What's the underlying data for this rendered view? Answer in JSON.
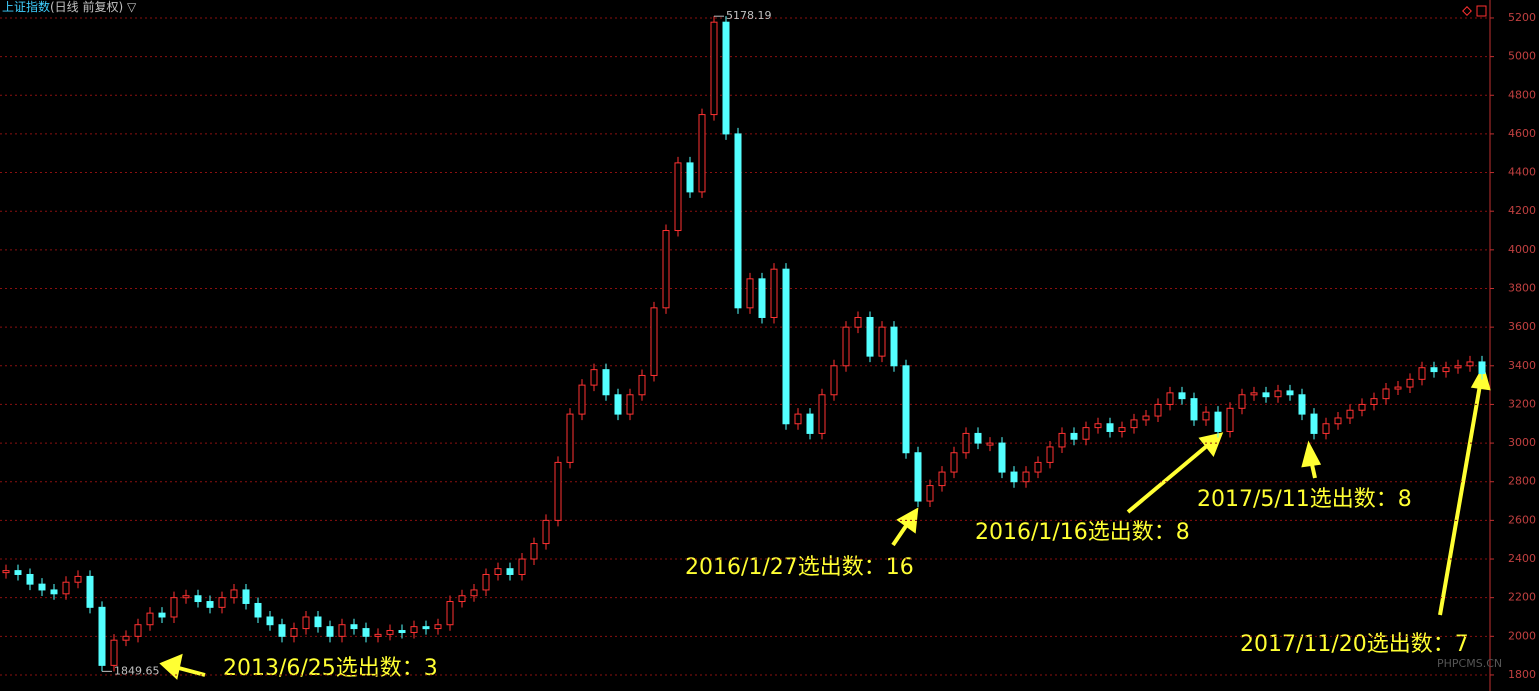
{
  "chart_data": {
    "type": "candle-line",
    "title": "上证指数",
    "subtitle": "(日线 前复权) ▽",
    "values": [
      2340,
      2320,
      2270,
      2240,
      2220,
      2280,
      2310,
      2150,
      1849.65,
      1980,
      2000,
      2060,
      2120,
      2100,
      2200,
      2210,
      2180,
      2150,
      2200,
      2240,
      2170,
      2100,
      2060,
      2000,
      2040,
      2100,
      2050,
      2000,
      2060,
      2040,
      2000,
      2010,
      2030,
      2020,
      2050,
      2040,
      2060,
      2180,
      2210,
      2240,
      2320,
      2350,
      2320,
      2400,
      2480,
      2600,
      2900,
      3150,
      3300,
      3380,
      3250,
      3150,
      3250,
      3350,
      3700,
      4100,
      4450,
      4300,
      4700,
      5178.19,
      4600,
      3700,
      3850,
      3650,
      3900,
      3100,
      3150,
      3050,
      3250,
      3400,
      3600,
      3650,
      3450,
      3600,
      3400,
      2950,
      2700,
      2780,
      2850,
      2950,
      3050,
      3000,
      3000,
      2850,
      2800,
      2850,
      2900,
      2980,
      3050,
      3020,
      3080,
      3100,
      3060,
      3080,
      3120,
      3140,
      3200,
      3260,
      3230,
      3120,
      3160,
      3060,
      3180,
      3250,
      3260,
      3240,
      3270,
      3250,
      3150,
      3050,
      3100,
      3130,
      3170,
      3200,
      3230,
      3280,
      3290,
      3330,
      3390,
      3370,
      3390,
      3400,
      3420,
      3360
    ],
    "up_color": "#ff3232",
    "down_color": "#54ffff",
    "ylim": [
      1717,
      5293
    ],
    "yticks": [
      1800,
      2000,
      2200,
      2400,
      2600,
      2800,
      3000,
      3200,
      3400,
      3600,
      3800,
      4000,
      4200,
      4400,
      4600,
      4800,
      5000,
      5200
    ],
    "grid": true,
    "annotations": [
      "2013/6/25选出数：3",
      "2016/1/27选出数：16",
      "2016/1/16选出数：8",
      "2017/5/11选出数：8",
      "2017/11/20选出数：7"
    ],
    "watermark": "PHPCMS.CN"
  }
}
